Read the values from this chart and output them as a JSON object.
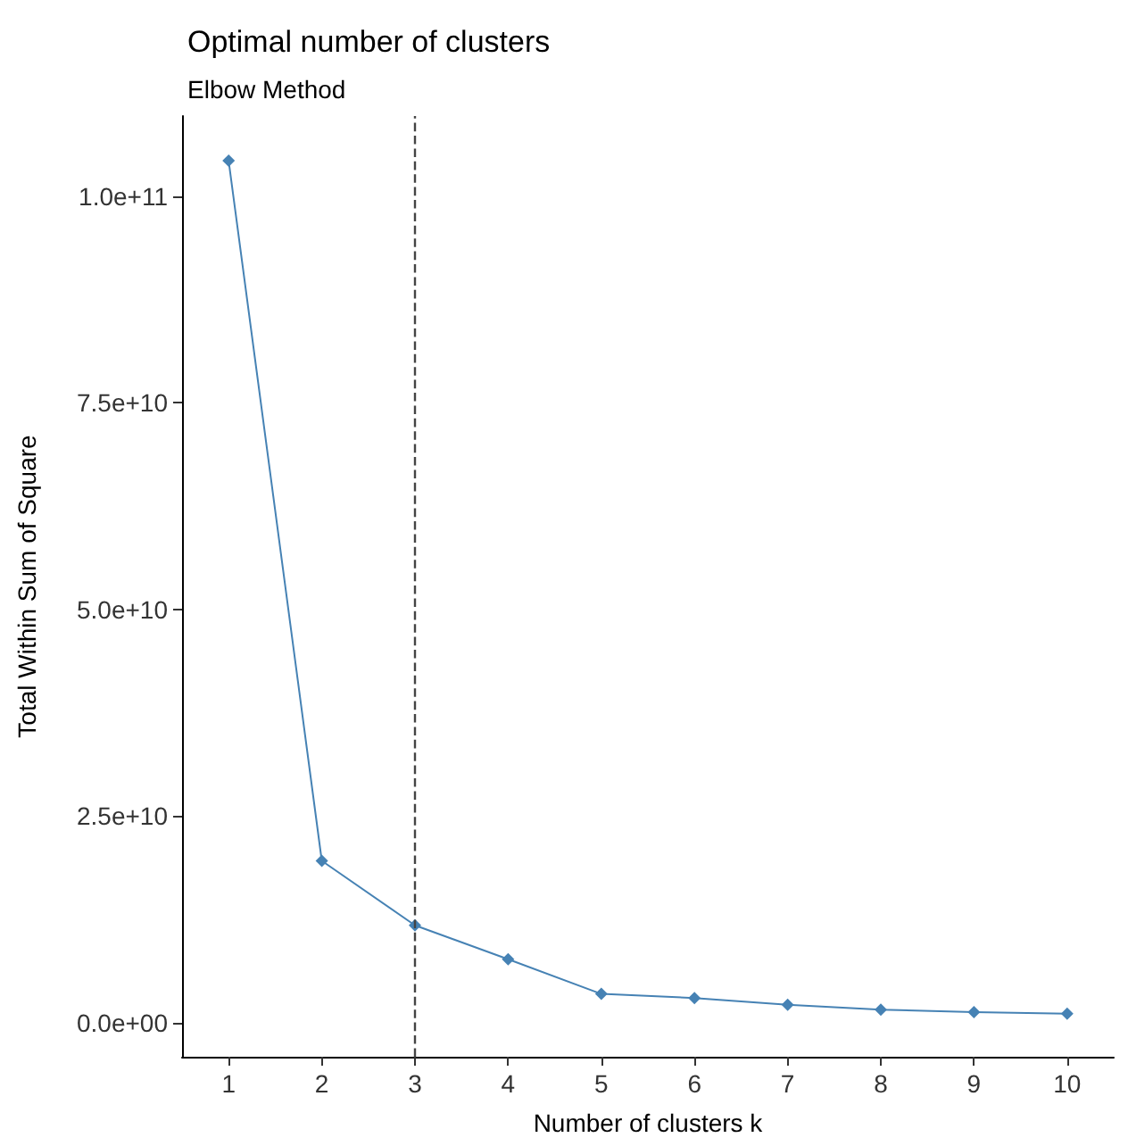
{
  "chart_data": {
    "type": "line",
    "title": "Optimal number of clusters",
    "subtitle": "Elbow Method",
    "xlabel": "Number of clusters k",
    "ylabel": "Total Within Sum of Square",
    "categories": [
      "1",
      "2",
      "3",
      "4",
      "5",
      "6",
      "7",
      "8",
      "9",
      "10"
    ],
    "series": [
      {
        "color": "#4682b4",
        "values": [
          104300000000,
          19600000000,
          11800000000,
          7700000000,
          3500000000,
          3000000000,
          2200000000,
          1600000000,
          1300000000,
          1100000000
        ]
      }
    ],
    "ylim": [
      -4100000000,
      109700000000
    ],
    "yticks": [
      {
        "value": 0,
        "label": "0.0e+00"
      },
      {
        "value": 25000000000,
        "label": "2.5e+10"
      },
      {
        "value": 50000000000,
        "label": "5.0e+10"
      },
      {
        "value": 75000000000,
        "label": "7.5e+10"
      },
      {
        "value": 100000000000,
        "label": "1.0e+11"
      }
    ],
    "ref_lines": [
      {
        "axis": "x",
        "value": "3",
        "line_style": "dashed",
        "color": "#444444"
      }
    ],
    "marker": "diamond",
    "line_style": "solid",
    "grid": false
  }
}
